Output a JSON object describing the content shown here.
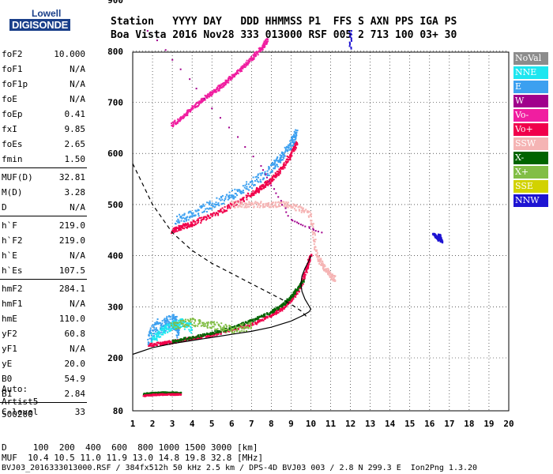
{
  "logo": {
    "line1": "Lowell",
    "line2": "DIGISONDE"
  },
  "header": {
    "line1": "Station   YYYY DAY   DDD HHMMSS P1  FFS S AXN PPS IGA PS",
    "line2": "Boa Vista 2016 Nov28 333 013000 RSF 005 2 713 100 03+ 30"
  },
  "params": [
    {
      "key": "foF2",
      "value": "10.000"
    },
    {
      "key": "foF1",
      "value": "N/A"
    },
    {
      "key": "foF1p",
      "value": "N/A"
    },
    {
      "key": "foE",
      "value": "N/A"
    },
    {
      "key": "foEp",
      "value": "0.41"
    },
    {
      "key": "fxI",
      "value": "9.85"
    },
    {
      "key": "foEs",
      "value": "2.65"
    },
    {
      "key": "fmin",
      "value": "1.50"
    },
    {
      "key": "MUF(D)",
      "value": "32.81"
    },
    {
      "key": "M(D)",
      "value": "3.28"
    },
    {
      "key": "D",
      "value": "N/A"
    },
    {
      "key": "h`F",
      "value": "219.0"
    },
    {
      "key": "h`F2",
      "value": "219.0"
    },
    {
      "key": "h`E",
      "value": "N/A"
    },
    {
      "key": "h`Es",
      "value": "107.5"
    },
    {
      "key": "hmF2",
      "value": "284.1"
    },
    {
      "key": "hmF1",
      "value": "N/A"
    },
    {
      "key": "hmE",
      "value": "110.0"
    },
    {
      "key": "yF2",
      "value": "60.8"
    },
    {
      "key": "yF1",
      "value": "N/A"
    },
    {
      "key": "yE",
      "value": "20.0"
    },
    {
      "key": "B0",
      "value": "54.9"
    },
    {
      "key": "B1",
      "value": "2.84"
    },
    {
      "key": "C-level",
      "value": "33"
    }
  ],
  "autoscaling": {
    "line1": "Auto:",
    "line2": "Artist5",
    "line3": "500200"
  },
  "footer": {
    "line1": "D     100  200  400  600  800 1000 1500 3000 [km]",
    "line2": "MUF  10.4 10.5 11.0 11.9 13.0 14.8 19.8 32.8 [MHz]",
    "line3": "BVJ03_2016333013000.RSF / 384fx512h 50 kHz 2.5 km / DPS-4D BVJ03 003 / 2.8 N 299.3 E  Ion2Png 1.3.20"
  },
  "legend": [
    {
      "label": "NoVal",
      "color": "#8c8c8c"
    },
    {
      "label": "NNE",
      "color": "#1ee6f0"
    },
    {
      "label": "E",
      "color": "#3ca0f0"
    },
    {
      "label": "W",
      "color": "#a0008c"
    },
    {
      "label": "Vo-",
      "color": "#f01ea0"
    },
    {
      "label": "Vo+",
      "color": "#f0004b"
    },
    {
      "label": "SSW",
      "color": "#f5b4b4"
    },
    {
      "label": "X-",
      "color": "#006400"
    },
    {
      "label": "X+",
      "color": "#82be46"
    },
    {
      "label": "SSE",
      "color": "#d2d200"
    },
    {
      "label": "NNW",
      "color": "#1e14d2"
    }
  ],
  "chart_data": {
    "type": "scatter",
    "title": "",
    "xlabel": "",
    "ylabel": "",
    "xlim": [
      1,
      20
    ],
    "ylim": [
      80,
      900
    ],
    "xticks": [
      1,
      2,
      3,
      4,
      5,
      6,
      7,
      8,
      9,
      10,
      11,
      12,
      13,
      14,
      15,
      16,
      17,
      18,
      19,
      20
    ],
    "yticks": [
      80,
      200,
      300,
      400,
      500,
      600,
      700,
      800,
      900
    ],
    "grid": true,
    "legend_position": "right",
    "traces": [
      {
        "name": "Es",
        "color_key": "X-",
        "points": [
          [
            1.6,
            118
          ],
          [
            2.0,
            120
          ],
          [
            2.5,
            121
          ],
          [
            3.0,
            121
          ],
          [
            3.4,
            120
          ]
        ],
        "spread": 3
      },
      {
        "name": "Es",
        "color_key": "Vo+",
        "points": [
          [
            1.6,
            114
          ],
          [
            2.0,
            116
          ],
          [
            2.5,
            117
          ],
          [
            3.0,
            117
          ],
          [
            3.4,
            117
          ]
        ],
        "spread": 3
      },
      {
        "name": "F2 O trace",
        "color_key": "Vo+",
        "points": [
          [
            1.8,
            225
          ],
          [
            2.5,
            228
          ],
          [
            3.0,
            231
          ],
          [
            4.0,
            238
          ],
          [
            5.0,
            245
          ],
          [
            6.0,
            255
          ],
          [
            7.0,
            265
          ],
          [
            8.0,
            283
          ],
          [
            8.5,
            295
          ],
          [
            9.0,
            312
          ],
          [
            9.5,
            340
          ],
          [
            9.8,
            375
          ],
          [
            10.0,
            400
          ]
        ],
        "spread": 6
      },
      {
        "name": "F2 X trace",
        "color_key": "X-",
        "points": [
          [
            3.0,
            232
          ],
          [
            4.0,
            240
          ],
          [
            5.0,
            248
          ],
          [
            6.0,
            258
          ],
          [
            7.0,
            272
          ],
          [
            8.0,
            289
          ],
          [
            8.6,
            304
          ],
          [
            9.1,
            322
          ],
          [
            9.6,
            350
          ]
        ],
        "spread": 5
      },
      {
        "name": "E region spread",
        "color_key": "E",
        "points": [
          [
            1.8,
            240
          ],
          [
            2.2,
            260
          ],
          [
            2.6,
            265
          ],
          [
            3.0,
            270
          ],
          [
            3.2,
            268
          ],
          [
            3.3,
            250
          ]
        ],
        "spread": 30
      },
      {
        "name": "NNE spread",
        "color_key": "NNE",
        "points": [
          [
            2.0,
            238
          ],
          [
            2.5,
            252
          ],
          [
            3.0,
            263
          ],
          [
            3.5,
            268
          ],
          [
            4.0,
            258
          ]
        ],
        "spread": 18
      },
      {
        "name": "E-W spread",
        "color_key": "X+",
        "points": [
          [
            3.0,
            262
          ],
          [
            4.0,
            270
          ],
          [
            5.0,
            265
          ],
          [
            6.0,
            255
          ],
          [
            7.0,
            262
          ]
        ],
        "spread": 15
      },
      {
        "name": "2nd hop F2",
        "color_key": "Vo+",
        "points": [
          [
            3.0,
            448
          ],
          [
            3.5,
            456
          ],
          [
            4.0,
            462
          ],
          [
            5.0,
            478
          ],
          [
            6.0,
            498
          ],
          [
            7.0,
            520
          ],
          [
            7.5,
            532
          ],
          [
            8.0,
            548
          ],
          [
            8.5,
            568
          ],
          [
            9.0,
            598
          ],
          [
            9.3,
            620
          ]
        ],
        "spread": 10
      },
      {
        "name": "2nd hop spread",
        "color_key": "E",
        "points": [
          [
            3.2,
            470
          ],
          [
            4.0,
            480
          ],
          [
            5.0,
            500
          ],
          [
            6.0,
            518
          ],
          [
            7.0,
            540
          ],
          [
            8.0,
            570
          ],
          [
            8.5,
            590
          ],
          [
            9.0,
            620
          ],
          [
            9.3,
            640
          ]
        ],
        "spread": 18
      },
      {
        "name": "3rd hop F2",
        "color_key": "Vo-",
        "points": [
          [
            3.0,
            655
          ],
          [
            3.5,
            670
          ],
          [
            4.0,
            688
          ],
          [
            4.5,
            703
          ],
          [
            5.0,
            718
          ],
          [
            5.5,
            732
          ],
          [
            6.0,
            750
          ],
          [
            6.5,
            765
          ],
          [
            7.0,
            785
          ],
          [
            7.5,
            805
          ],
          [
            7.8,
            822
          ]
        ],
        "spread": 8
      },
      {
        "name": "SSW spread",
        "color_key": "SSW",
        "points": [
          [
            6.0,
            500
          ],
          [
            7.0,
            500
          ],
          [
            8.0,
            500
          ],
          [
            9.0,
            500
          ],
          [
            10.0,
            480
          ],
          [
            10.3,
            400
          ],
          [
            10.6,
            380
          ],
          [
            10.9,
            365
          ],
          [
            11.2,
            355
          ]
        ],
        "spread": 12
      },
      {
        "name": "NNW echoes",
        "color_key": "NNW",
        "points": [
          [
            16.2,
            442
          ],
          [
            16.4,
            435
          ],
          [
            16.5,
            430
          ],
          [
            16.5,
            440
          ],
          [
            16.6,
            427
          ]
        ],
        "spread": 4
      },
      {
        "name": "isolated",
        "color_key": "NNW",
        "points": [
          [
            12.0,
            840
          ],
          [
            12.0,
            805
          ]
        ],
        "spread": 1
      },
      {
        "name": "isolated",
        "color_key": "W",
        "points": [
          [
            1.8,
            840
          ],
          [
            7.5,
            575
          ],
          [
            9.0,
            470
          ],
          [
            10.5,
            445
          ]
        ],
        "spread": 1
      }
    ],
    "profile_solid": [
      [
        1.0,
        207
      ],
      [
        2.0,
        220
      ],
      [
        3.0,
        228
      ],
      [
        4.0,
        234
      ],
      [
        5.0,
        240
      ],
      [
        6.0,
        246
      ],
      [
        7.0,
        252
      ],
      [
        8.0,
        260
      ],
      [
        9.0,
        272
      ],
      [
        9.6,
        283
      ],
      [
        9.9,
        290
      ],
      [
        10.0,
        295
      ],
      [
        9.9,
        302
      ],
      [
        9.7,
        315
      ],
      [
        9.55,
        330
      ],
      [
        9.5,
        345
      ],
      [
        9.55,
        360
      ],
      [
        9.7,
        375
      ],
      [
        9.9,
        390
      ],
      [
        10.0,
        400
      ]
    ],
    "profile_dashed": [
      [
        1.0,
        580
      ],
      [
        2.0,
        500
      ],
      [
        3.0,
        445
      ],
      [
        4.0,
        410
      ],
      [
        5.0,
        385
      ],
      [
        6.0,
        365
      ],
      [
        7.0,
        345
      ],
      [
        8.0,
        325
      ],
      [
        9.0,
        305
      ],
      [
        9.5,
        292
      ],
      [
        9.8,
        280
      ]
    ]
  }
}
